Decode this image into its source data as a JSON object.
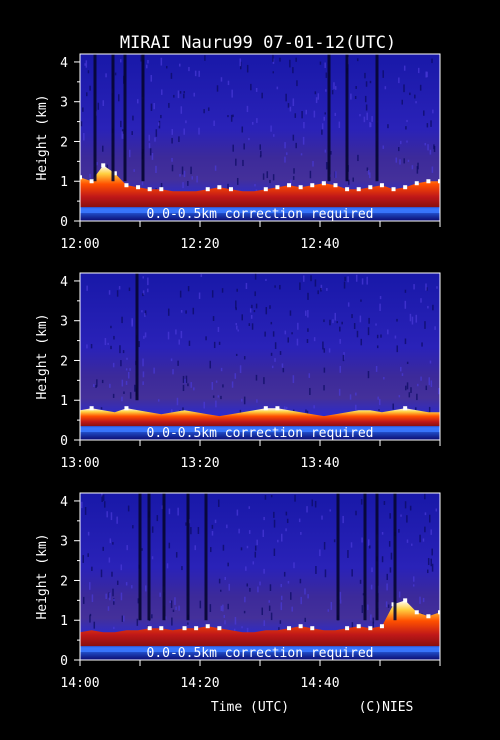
{
  "chart_data": [
    {
      "type": "heatmap",
      "title": "MIRAI Nauru99 07-01-12(UTC)",
      "ylabel": "Height (km)",
      "xlabel": "",
      "annotation": "0.0-0.5km correction required",
      "ylim": [
        0,
        4.2
      ],
      "yticks": [
        0,
        1,
        2,
        3,
        4
      ],
      "xticklabels": [
        "12:00",
        "12:20",
        "12:40"
      ],
      "xlim": [
        "12:00",
        "13:00"
      ],
      "grid": false,
      "colormap": [
        "#000060",
        "#1010c0",
        "#3a2ad0",
        "#7a2aa0",
        "#c01818",
        "#ff5000",
        "#ffd040",
        "#ffffff"
      ],
      "cloud_top_km": [
        1.1,
        1.0,
        1.4,
        1.2,
        0.9,
        0.85,
        0.8,
        0.8,
        0.75,
        0.75,
        0.75,
        0.8,
        0.85,
        0.8,
        0.75,
        0.75,
        0.8,
        0.85,
        0.9,
        0.85,
        0.9,
        0.95,
        0.9,
        0.8,
        0.8,
        0.85,
        0.9,
        0.8,
        0.85,
        0.95,
        1.0,
        1.0
      ],
      "signal_dropouts_min": [
        2.5,
        5.5,
        7.5,
        10.5,
        41.5,
        44.5,
        49.5
      ]
    },
    {
      "type": "heatmap",
      "title": "",
      "ylabel": "Height (km)",
      "xlabel": "",
      "annotation": "0.0-0.5km correction required",
      "ylim": [
        0,
        4.2
      ],
      "yticks": [
        0,
        1,
        2,
        3,
        4
      ],
      "xticklabels": [
        "13:00",
        "13:20",
        "13:40"
      ],
      "xlim": [
        "13:00",
        "14:00"
      ],
      "grid": false,
      "colormap": [
        "#000060",
        "#1010c0",
        "#3a2ad0",
        "#7a2aa0",
        "#c01818",
        "#ff5000",
        "#ffd040",
        "#ffffff"
      ],
      "cloud_top_km": [
        0.75,
        0.8,
        0.75,
        0.7,
        0.8,
        0.75,
        0.7,
        0.65,
        0.7,
        0.75,
        0.7,
        0.65,
        0.6,
        0.65,
        0.7,
        0.75,
        0.8,
        0.8,
        0.75,
        0.7,
        0.65,
        0.6,
        0.65,
        0.7,
        0.75,
        0.75,
        0.7,
        0.75,
        0.8,
        0.75,
        0.7,
        0.7
      ],
      "signal_dropouts_min": [
        9.5
      ]
    },
    {
      "type": "heatmap",
      "title": "",
      "ylabel": "Height (km)",
      "xlabel": "Time (UTC)",
      "annotation": "0.0-0.5km correction required",
      "credit": "(C)NIES",
      "ylim": [
        0,
        4.2
      ],
      "yticks": [
        0,
        1,
        2,
        3,
        4
      ],
      "xticklabels": [
        "14:00",
        "14:20",
        "14:40"
      ],
      "xlim": [
        "14:00",
        "15:00"
      ],
      "grid": false,
      "colormap": [
        "#000060",
        "#1010c0",
        "#3a2ad0",
        "#7a2aa0",
        "#c01818",
        "#ff5000",
        "#ffd040",
        "#ffffff"
      ],
      "cloud_top_km": [
        0.7,
        0.75,
        0.7,
        0.7,
        0.75,
        0.75,
        0.8,
        0.8,
        0.75,
        0.8,
        0.8,
        0.85,
        0.8,
        0.75,
        0.7,
        0.7,
        0.75,
        0.75,
        0.8,
        0.85,
        0.8,
        0.75,
        0.75,
        0.8,
        0.85,
        0.8,
        0.85,
        1.4,
        1.5,
        1.2,
        1.1,
        1.2
      ],
      "signal_dropouts_min": [
        10.0,
        11.5,
        14.0,
        18.0,
        21.0,
        43.0,
        47.5,
        49.5,
        52.5
      ]
    }
  ]
}
